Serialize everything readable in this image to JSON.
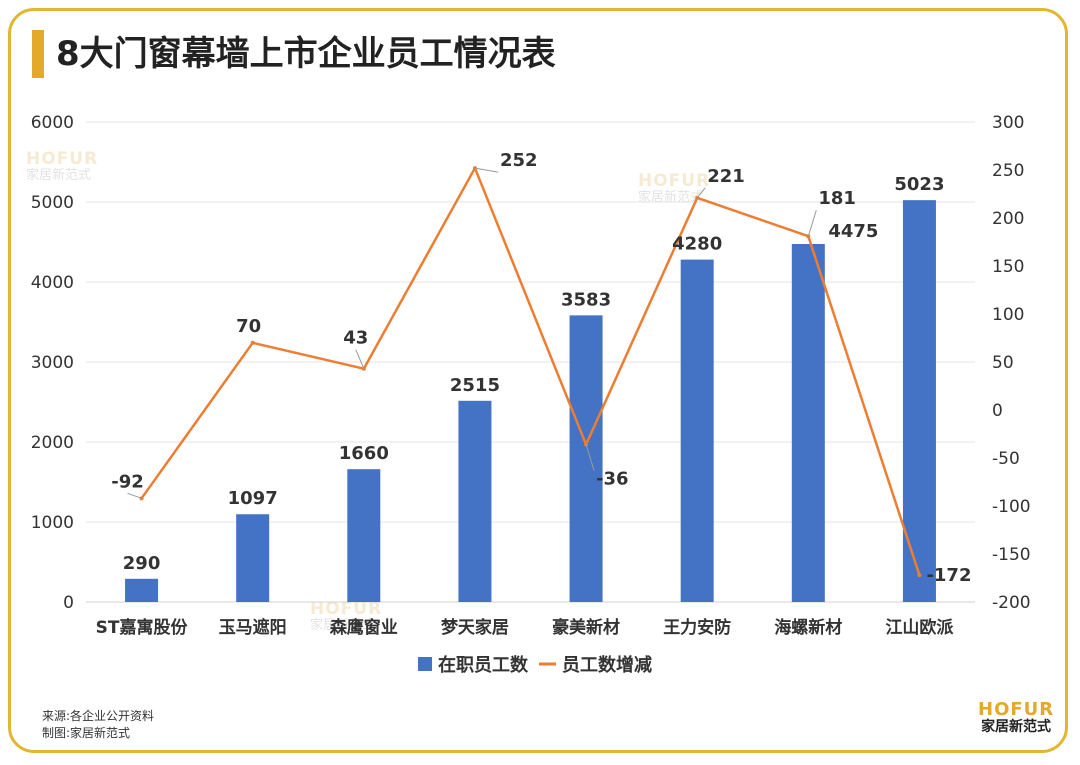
{
  "title": "8大门窗幕墙上市企业员工情况表",
  "watermark": {
    "brand": "HOFUR",
    "sub": "家居新范式"
  },
  "source": {
    "line1": "来源:各企业公开资料",
    "line2": "制图:家居新范式"
  },
  "brand": {
    "name": "HOFUR",
    "sub": "家居新范式"
  },
  "colors": {
    "bar": "#4472C4",
    "line": "#ED7D31",
    "accent": "#E3A92A",
    "frame": "#E3B632"
  },
  "chart_data": {
    "type": "bar",
    "title": "8大门窗幕墙上市企业员工情况表",
    "categories": [
      "ST嘉寓股份",
      "玉马遮阳",
      "森鹰窗业",
      "梦天家居",
      "豪美新材",
      "王力安防",
      "海螺新材",
      "江山欧派"
    ],
    "series": [
      {
        "name": "在职员工数",
        "type": "bar",
        "axis": "left",
        "values": [
          290,
          1097,
          1660,
          2515,
          3583,
          4280,
          4475,
          5023
        ]
      },
      {
        "name": "员工数增减",
        "type": "line",
        "axis": "right",
        "values": [
          -92,
          70,
          43,
          252,
          -36,
          221,
          181,
          -172
        ]
      }
    ],
    "y_left": {
      "min": 0,
      "max": 6000,
      "ticks": [
        "0",
        "1000",
        "2000",
        "3000",
        "4000",
        "5000",
        "6000"
      ]
    },
    "y_right": {
      "min": -200,
      "max": 300,
      "ticks": [
        "-200",
        "-150",
        "-100",
        "-50",
        "0",
        "50",
        "100",
        "150",
        "200",
        "250",
        "300"
      ]
    },
    "grid": true,
    "legend_position": "bottom"
  }
}
